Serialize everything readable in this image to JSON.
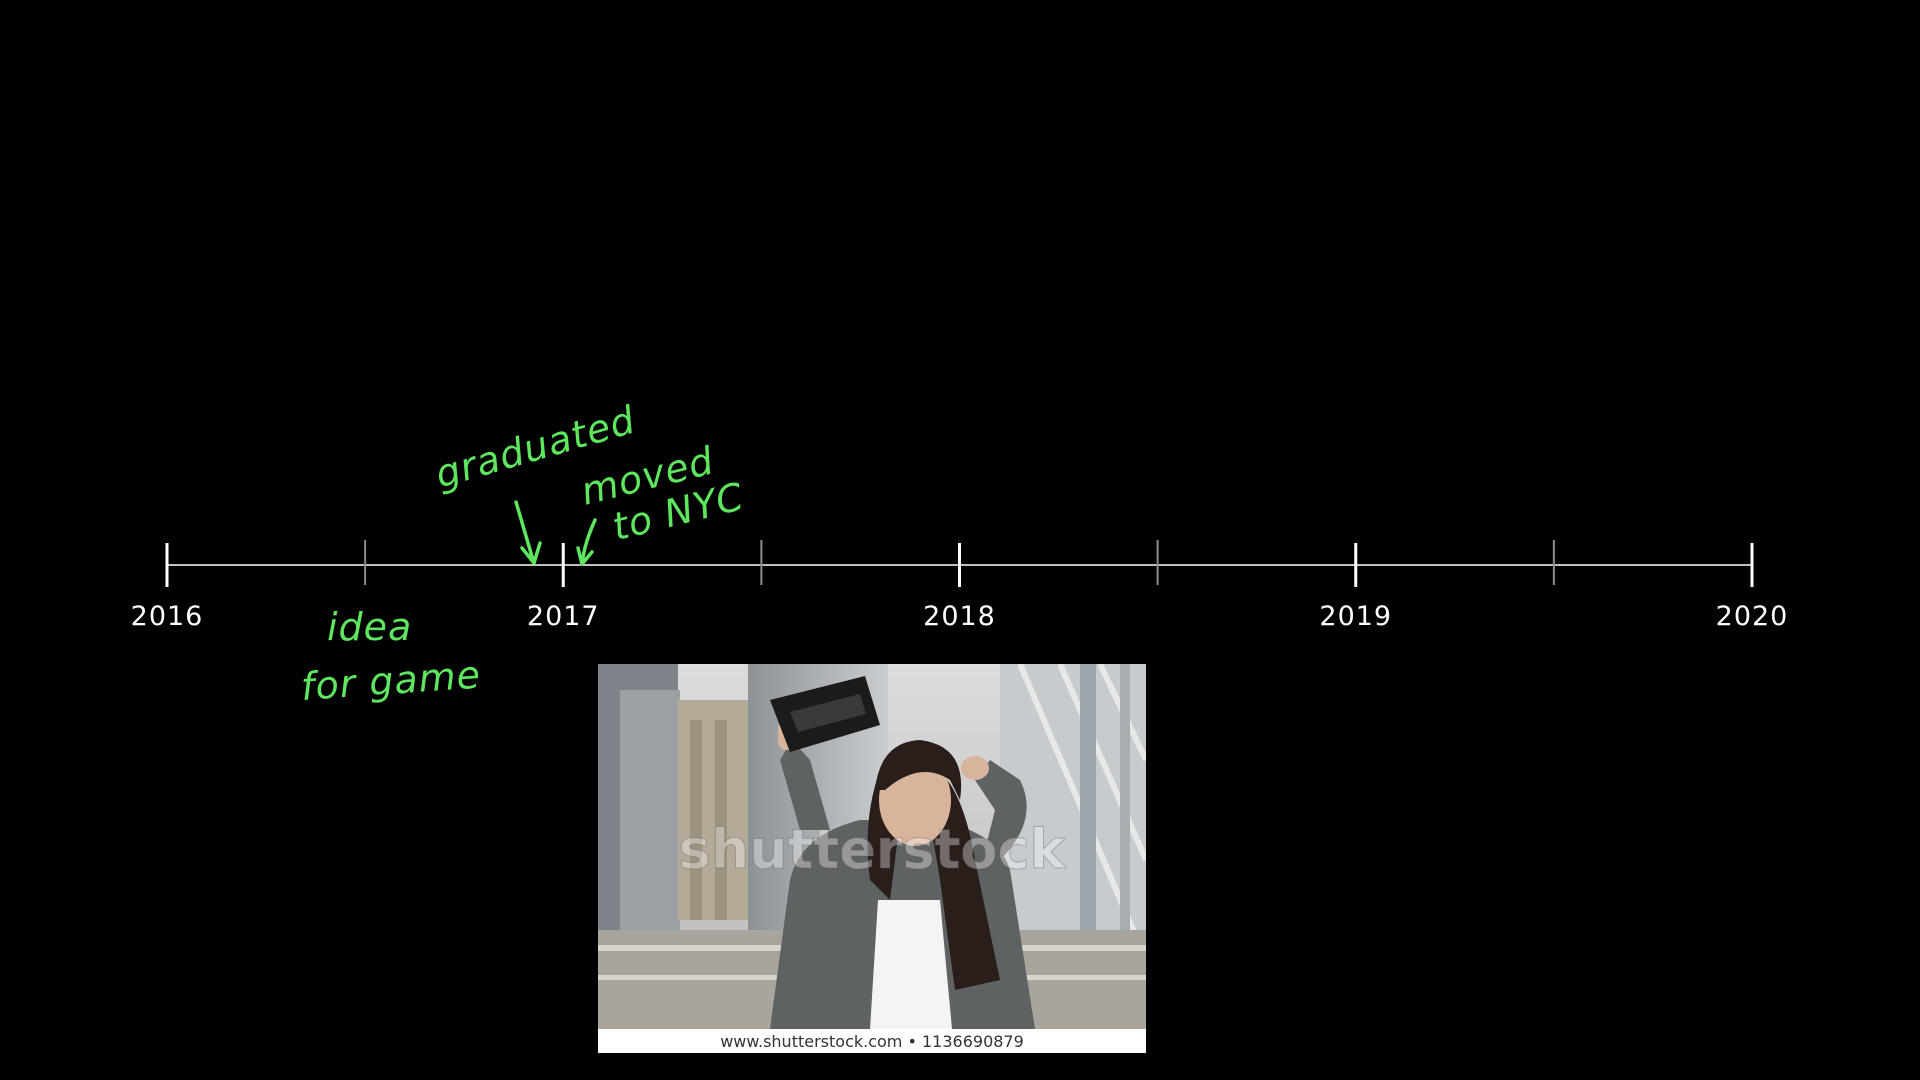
{
  "colors": {
    "background": "#000000",
    "axis": "#ffffff",
    "minor_tick": "#8c8c8c",
    "annotation": "#5ee65e",
    "caption_bg": "#ffffff",
    "caption_text": "#333333"
  },
  "timeline": {
    "start_year": 2016,
    "end_year": 2020,
    "major_ticks": [
      {
        "value": 2016,
        "label": "2016"
      },
      {
        "value": 2017,
        "label": "2017"
      },
      {
        "value": 2018,
        "label": "2018"
      },
      {
        "value": 2019,
        "label": "2019"
      },
      {
        "value": 2020,
        "label": "2020"
      }
    ],
    "minor_ticks": [
      2016.5,
      2017.5,
      2018.5,
      2019.5
    ]
  },
  "annotations": [
    {
      "id": "graduated",
      "lines": [
        "graduated"
      ],
      "date": 2016.93
    },
    {
      "id": "moved-to-nyc",
      "lines": [
        "moved",
        "to NYC"
      ],
      "date": 2017.06
    },
    {
      "id": "idea-for-game",
      "lines": [
        "idea",
        "for game"
      ],
      "date": 2016.5
    }
  ],
  "photo": {
    "subject": "woman holding an empty wallet, frustrated",
    "watermark": "shutterstock",
    "caption": "www.shutterstock.com • 1136690879"
  }
}
